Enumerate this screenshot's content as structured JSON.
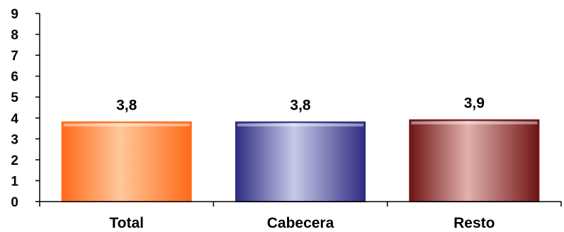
{
  "chart_data": {
    "type": "bar",
    "title": "",
    "xlabel": "",
    "ylabel": "",
    "categories": [
      "Total",
      "Cabecera",
      "Resto"
    ],
    "values": [
      3.8,
      3.8,
      3.9
    ],
    "data_labels": [
      "3,8",
      "3,8",
      "3,9"
    ],
    "ylim": [
      0,
      9
    ],
    "yticks": [
      0,
      1,
      2,
      3,
      4,
      5,
      6,
      7,
      8,
      9
    ],
    "grid": false,
    "legend": "none",
    "bar_colors": [
      {
        "dark": "#ff6a1a",
        "light": "#ffc79a"
      },
      {
        "dark": "#2e2c82",
        "light": "#c7c9e8"
      },
      {
        "dark": "#6e1414",
        "light": "#e2b1ad"
      }
    ]
  }
}
